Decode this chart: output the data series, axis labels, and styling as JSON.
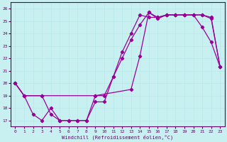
{
  "xlabel": "Windchill (Refroidissement éolien,°C)",
  "background_color": "#c8f0f0",
  "grid_color": "#b8e8e8",
  "line_color": "#990099",
  "xlim": [
    -0.5,
    23.5
  ],
  "ylim": [
    16.5,
    26.5
  ],
  "xticks": [
    0,
    1,
    2,
    3,
    4,
    5,
    6,
    7,
    8,
    9,
    10,
    11,
    12,
    13,
    14,
    15,
    16,
    17,
    18,
    19,
    20,
    21,
    22,
    23
  ],
  "yticks": [
    17,
    18,
    19,
    20,
    21,
    22,
    23,
    24,
    25,
    26
  ],
  "series": [
    {
      "x": [
        0,
        1,
        2,
        3,
        4,
        5,
        6,
        7,
        8,
        9,
        10,
        11,
        12,
        13,
        14,
        15,
        16,
        17,
        18,
        19,
        20,
        21,
        22,
        23
      ],
      "y": [
        20.0,
        19.0,
        17.5,
        17.0,
        18.0,
        17.0,
        17.0,
        17.0,
        17.0,
        18.5,
        18.5,
        20.5,
        22.0,
        23.5,
        24.7,
        25.7,
        25.2,
        25.5,
        25.5,
        25.5,
        25.5,
        24.5,
        23.3,
        21.3
      ]
    },
    {
      "x": [
        0,
        1,
        3,
        4,
        5,
        6,
        7,
        8,
        9,
        10,
        11,
        12,
        13,
        14,
        15,
        16,
        17,
        18,
        19,
        20,
        21,
        22,
        23
      ],
      "y": [
        20.0,
        19.0,
        19.0,
        17.5,
        17.0,
        17.0,
        17.0,
        17.0,
        19.0,
        19.0,
        20.5,
        22.5,
        24.0,
        25.5,
        25.3,
        25.3,
        25.5,
        25.5,
        25.5,
        25.5,
        25.5,
        25.3,
        21.3
      ]
    },
    {
      "x": [
        0,
        1,
        3,
        9,
        13,
        14,
        15,
        16,
        17,
        18,
        19,
        20,
        21,
        22,
        23
      ],
      "y": [
        20.0,
        19.0,
        19.0,
        19.0,
        19.5,
        22.2,
        25.7,
        25.3,
        25.5,
        25.5,
        25.5,
        25.5,
        25.5,
        25.2,
        21.3
      ]
    }
  ]
}
